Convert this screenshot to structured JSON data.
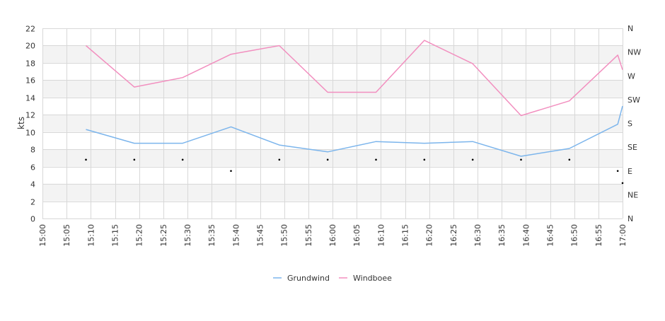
{
  "chart_data": {
    "type": "line",
    "ylabel": "kts",
    "ylim": [
      0,
      22
    ],
    "y_ticks": [
      0,
      2,
      4,
      6,
      8,
      10,
      12,
      14,
      16,
      18,
      20,
      22
    ],
    "x_ticks": [
      "15:00",
      "15:05",
      "15:10",
      "15:15",
      "15:20",
      "15:25",
      "15:30",
      "15:35",
      "15:40",
      "15:45",
      "15:50",
      "15:55",
      "16:00",
      "16:05",
      "16:10",
      "16:15",
      "16:20",
      "16:25",
      "16:30",
      "16:35",
      "16:40",
      "16:45",
      "16:50",
      "16:55",
      "17:00"
    ],
    "y2_ticks": [
      "N",
      "NE",
      "E",
      "SE",
      "S",
      "SW",
      "W",
      "NW",
      "N"
    ],
    "grid": true,
    "legend_position": "bottom-center",
    "series": [
      {
        "name": "Grundwind",
        "color": "#7cb5ec",
        "points": [
          {
            "x": "15:09",
            "y": 10.3
          },
          {
            "x": "15:19",
            "y": 8.7
          },
          {
            "x": "15:29",
            "y": 8.7
          },
          {
            "x": "15:39",
            "y": 10.6
          },
          {
            "x": "15:49",
            "y": 8.5
          },
          {
            "x": "15:59",
            "y": 7.7
          },
          {
            "x": "16:09",
            "y": 8.9
          },
          {
            "x": "16:19",
            "y": 8.7
          },
          {
            "x": "16:29",
            "y": 8.9
          },
          {
            "x": "16:39",
            "y": 7.2
          },
          {
            "x": "16:49",
            "y": 8.1
          },
          {
            "x": "16:59",
            "y": 10.9
          },
          {
            "x": "17:00",
            "y": 13.0
          }
        ]
      },
      {
        "name": "Windboee",
        "color": "#f28fbf",
        "points": [
          {
            "x": "15:09",
            "y": 20.0
          },
          {
            "x": "15:19",
            "y": 15.2
          },
          {
            "x": "15:29",
            "y": 16.3
          },
          {
            "x": "15:39",
            "y": 19.0
          },
          {
            "x": "15:49",
            "y": 20.0
          },
          {
            "x": "15:59",
            "y": 14.6
          },
          {
            "x": "16:09",
            "y": 14.6
          },
          {
            "x": "16:19",
            "y": 20.6
          },
          {
            "x": "16:29",
            "y": 17.9
          },
          {
            "x": "16:39",
            "y": 11.9
          },
          {
            "x": "16:49",
            "y": 13.6
          },
          {
            "x": "16:59",
            "y": 18.9
          },
          {
            "x": "17:00",
            "y": 17.2
          }
        ]
      }
    ],
    "direction_markers": [
      {
        "x": "15:09",
        "y": 6.8
      },
      {
        "x": "15:19",
        "y": 6.8
      },
      {
        "x": "15:29",
        "y": 6.8
      },
      {
        "x": "15:39",
        "y": 5.5
      },
      {
        "x": "15:49",
        "y": 6.8
      },
      {
        "x": "15:59",
        "y": 6.8
      },
      {
        "x": "16:09",
        "y": 6.8
      },
      {
        "x": "16:19",
        "y": 6.8
      },
      {
        "x": "16:29",
        "y": 6.8
      },
      {
        "x": "16:39",
        "y": 6.8
      },
      {
        "x": "16:49",
        "y": 6.8
      },
      {
        "x": "16:59",
        "y": 5.5
      },
      {
        "x": "17:00",
        "y": 4.1
      }
    ],
    "band_color": "#f3f3f3",
    "grid_color": "#d8d8d8"
  }
}
